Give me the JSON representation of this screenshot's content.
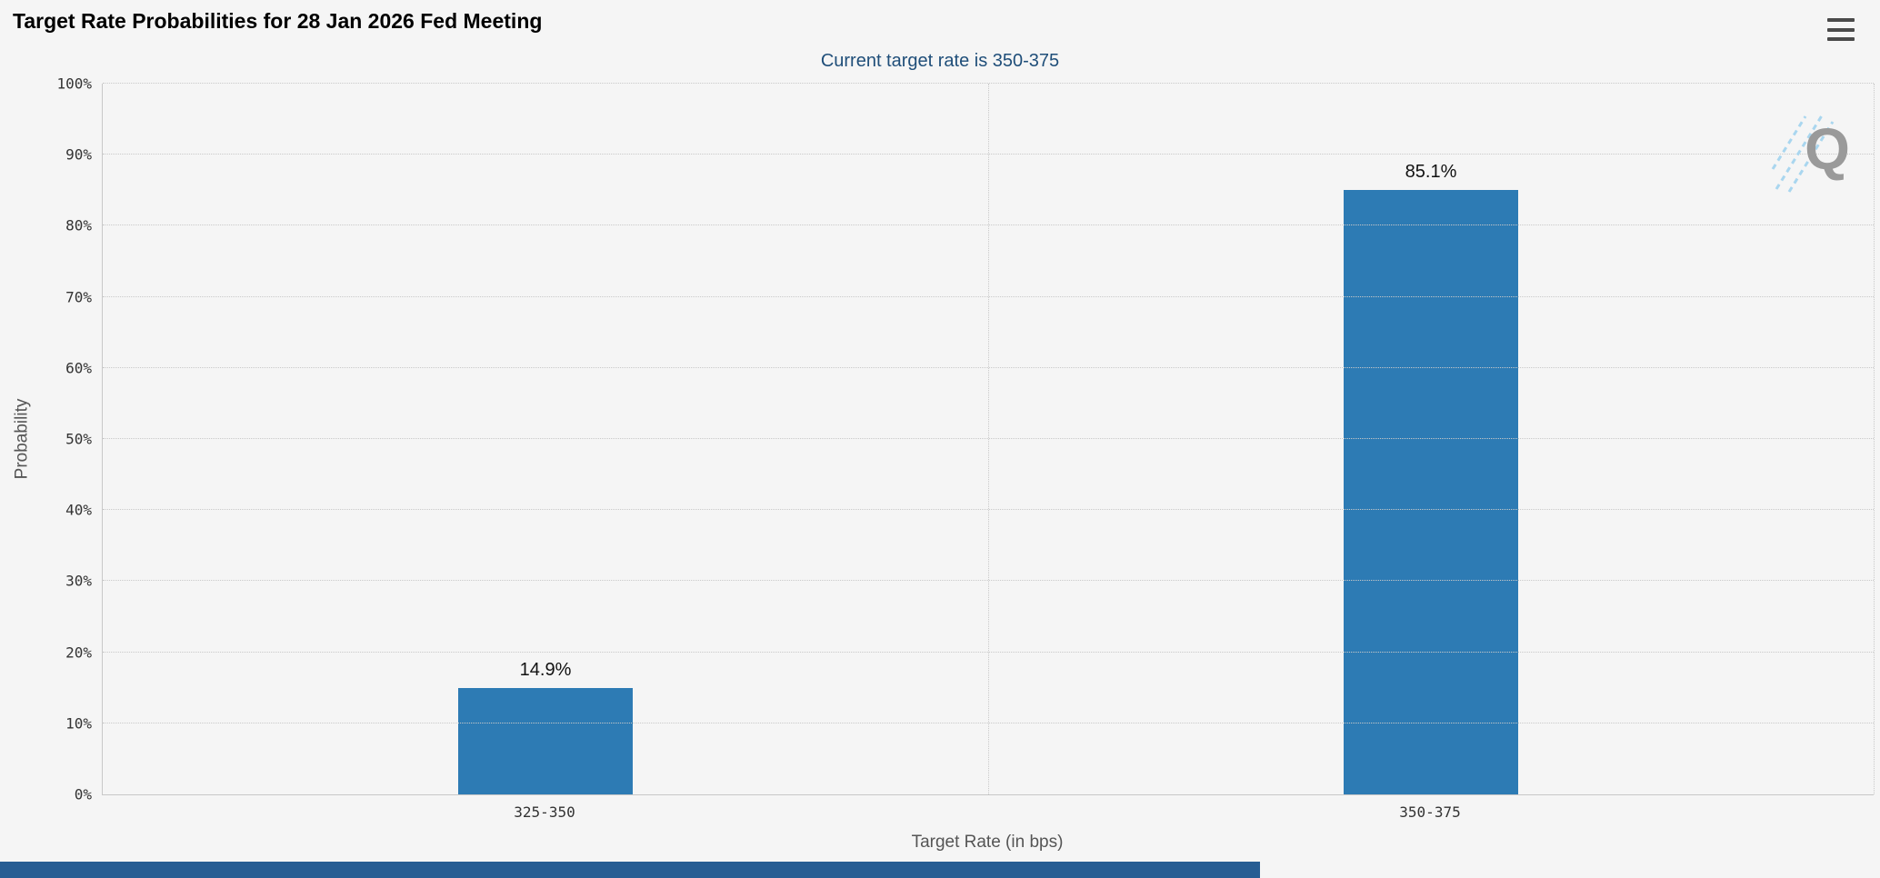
{
  "header": {
    "title": "Target Rate Probabilities for 28 Jan 2026 Fed Meeting",
    "menu_icon": "hamburger-icon"
  },
  "watermark_letter": "Q",
  "chart_data": {
    "type": "bar",
    "title": "Target Rate Probabilities for 28 Jan 2026 Fed Meeting",
    "subtitle": "Current target rate is 350-375",
    "categories": [
      "325-350",
      "350-375"
    ],
    "values": [
      14.9,
      85.1
    ],
    "data_labels": [
      "14.9%",
      "85.1%"
    ],
    "xlabel": "Target Rate (in bps)",
    "ylabel": "Probability",
    "ylim": [
      0,
      100
    ],
    "ytick_step": 10,
    "ytick_labels": [
      "0%",
      "10%",
      "20%",
      "30%",
      "40%",
      "50%",
      "60%",
      "70%",
      "80%",
      "90%",
      "100%"
    ],
    "bar_color": "#2d7bb4",
    "grid": true,
    "legend": false
  },
  "colors": {
    "background": "#f5f5f5",
    "subtitle_text": "#1f4e79",
    "grid": "#c9c9c9",
    "axis_text": "#333333",
    "axis_title_text": "#555555",
    "bar": "#2d7bb4",
    "bottom_bar": "#275d93",
    "watermark_gray": "#9a9a9a",
    "watermark_blue": "#a9d6ef"
  }
}
